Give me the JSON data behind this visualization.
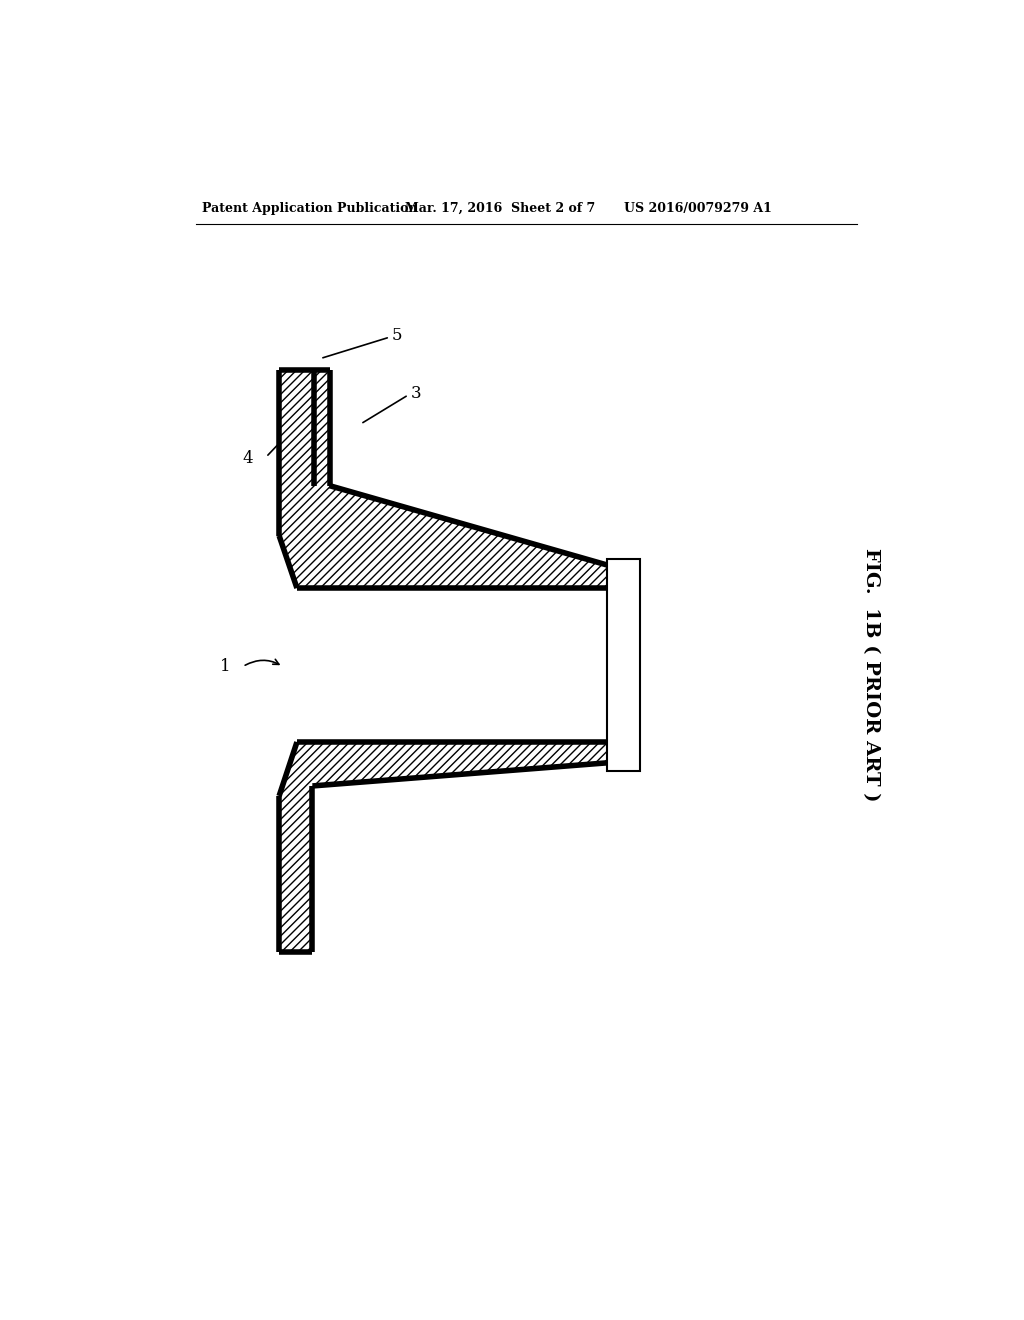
{
  "bg_color": "#ffffff",
  "header_left": "Patent Application Publication",
  "header_mid": "Mar. 17, 2016  Sheet 2 of 7",
  "header_right": "US 2016/0079279 A1",
  "fig_label": "FIG.  1B ( PRIOR ART )",
  "label_1": "1",
  "label_3": "3",
  "label_4": "4",
  "label_5": "5",
  "line_color": "#000000",
  "lw_thick": 4.0,
  "lw_thin": 1.2,
  "lw_medium": 2.0
}
